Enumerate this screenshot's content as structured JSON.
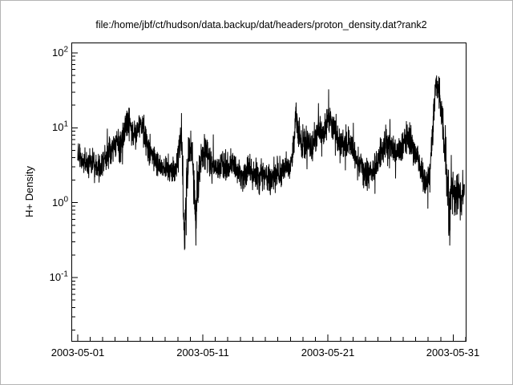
{
  "chart_data": {
    "type": "line",
    "title": "file:/home/jbf/ct/hudson/data.backup/dat/headers/proton_density.dat?rank2",
    "xlabel": "",
    "ylabel": "H+ Density",
    "y_scale": "log",
    "ylim": [
      0.0143,
      137.7
    ],
    "x_domain_days": [
      -0.5,
      31.0
    ],
    "x_start_date": "2003-05-01",
    "x_ticks": [
      {
        "day": 0,
        "label": "2003-05-01"
      },
      {
        "day": 10,
        "label": "2003-05-11"
      },
      {
        "day": 20,
        "label": "2003-05-21"
      },
      {
        "day": 30,
        "label": "2003-05-31"
      }
    ],
    "y_ticks": [
      {
        "value": 100,
        "base": "10",
        "exp": "2"
      },
      {
        "value": 10,
        "base": "10",
        "exp": "1"
      },
      {
        "value": 1,
        "base": "10",
        "exp": "0"
      },
      {
        "value": 0.1,
        "base": "10",
        "exp": "-1"
      }
    ],
    "line_color": "#000000",
    "frame_color": "#000000",
    "background_color": "#ffffff",
    "points_per_day": 80,
    "noise_seed": 1234,
    "series": [
      {
        "name": "H+ Density",
        "units": "",
        "control_points": [
          [
            0.0,
            4.5,
            0.09
          ],
          [
            0.3,
            3.6,
            0.08
          ],
          [
            0.7,
            3.2,
            0.08
          ],
          [
            1.1,
            3.8,
            0.09
          ],
          [
            1.5,
            3.3,
            0.08
          ],
          [
            1.9,
            2.9,
            0.08
          ],
          [
            2.2,
            3.8,
            0.09
          ],
          [
            2.6,
            5.0,
            0.1
          ],
          [
            3.0,
            5.5,
            0.1
          ],
          [
            3.4,
            6.0,
            0.1
          ],
          [
            3.8,
            9.0,
            0.1
          ],
          [
            4.0,
            13.0,
            0.1
          ],
          [
            4.2,
            11.0,
            0.1
          ],
          [
            4.5,
            7.0,
            0.1
          ],
          [
            4.8,
            9.5,
            0.1
          ],
          [
            5.1,
            11.0,
            0.1
          ],
          [
            5.4,
            8.0,
            0.1
          ],
          [
            5.7,
            5.0,
            0.1
          ],
          [
            6.0,
            4.0,
            0.09
          ],
          [
            6.5,
            3.2,
            0.08
          ],
          [
            7.0,
            2.8,
            0.08
          ],
          [
            7.5,
            2.5,
            0.08
          ],
          [
            7.9,
            3.0,
            0.09
          ],
          [
            8.15,
            6.0,
            0.1
          ],
          [
            8.3,
            9.0,
            0.1
          ],
          [
            8.45,
            0.8,
            0.2
          ],
          [
            8.55,
            0.35,
            0.2
          ],
          [
            8.7,
            2.0,
            0.15
          ],
          [
            8.9,
            4.5,
            0.12
          ],
          [
            9.1,
            5.5,
            0.1
          ],
          [
            9.3,
            2.0,
            0.15
          ],
          [
            9.45,
            0.5,
            0.2
          ],
          [
            9.6,
            1.5,
            0.15
          ],
          [
            9.8,
            3.5,
            0.12
          ],
          [
            10.0,
            4.5,
            0.1
          ],
          [
            10.3,
            5.0,
            0.1
          ],
          [
            10.6,
            3.5,
            0.1
          ],
          [
            11.0,
            2.8,
            0.09
          ],
          [
            11.5,
            3.2,
            0.09
          ],
          [
            12.0,
            2.7,
            0.09
          ],
          [
            12.4,
            3.3,
            0.09
          ],
          [
            12.8,
            2.6,
            0.09
          ],
          [
            13.2,
            2.2,
            0.1
          ],
          [
            13.6,
            2.8,
            0.09
          ],
          [
            14.0,
            2.4,
            0.09
          ],
          [
            14.5,
            2.0,
            0.1
          ],
          [
            15.0,
            2.3,
            0.09
          ],
          [
            15.4,
            1.9,
            0.1
          ],
          [
            15.8,
            2.4,
            0.09
          ],
          [
            16.2,
            2.6,
            0.09
          ],
          [
            16.6,
            2.8,
            0.09
          ],
          [
            17.0,
            3.2,
            0.09
          ],
          [
            17.25,
            6.0,
            0.1
          ],
          [
            17.45,
            16.0,
            0.1
          ],
          [
            17.6,
            9.0,
            0.1
          ],
          [
            17.9,
            6.5,
            0.1
          ],
          [
            18.3,
            7.5,
            0.1
          ],
          [
            18.7,
            6.0,
            0.1
          ],
          [
            19.0,
            7.0,
            0.1
          ],
          [
            19.3,
            9.0,
            0.1
          ],
          [
            19.6,
            8.0,
            0.1
          ],
          [
            19.9,
            12.0,
            0.11
          ],
          [
            20.2,
            14.0,
            0.11
          ],
          [
            20.5,
            9.0,
            0.1
          ],
          [
            20.8,
            7.0,
            0.1
          ],
          [
            21.2,
            5.5,
            0.1
          ],
          [
            21.6,
            6.5,
            0.1
          ],
          [
            22.0,
            5.0,
            0.1
          ],
          [
            22.4,
            3.5,
            0.09
          ],
          [
            22.8,
            2.8,
            0.09
          ],
          [
            23.2,
            2.4,
            0.09
          ],
          [
            23.6,
            3.0,
            0.09
          ],
          [
            24.0,
            3.5,
            0.09
          ],
          [
            24.4,
            5.0,
            0.1
          ],
          [
            24.7,
            6.5,
            0.1
          ],
          [
            25.0,
            5.5,
            0.1
          ],
          [
            25.4,
            4.5,
            0.1
          ],
          [
            25.8,
            5.0,
            0.1
          ],
          [
            26.1,
            6.5,
            0.1
          ],
          [
            26.4,
            8.0,
            0.11
          ],
          [
            26.7,
            6.0,
            0.1
          ],
          [
            27.0,
            4.5,
            0.1
          ],
          [
            27.4,
            3.0,
            0.1
          ],
          [
            27.8,
            1.6,
            0.12
          ],
          [
            28.1,
            2.5,
            0.12
          ],
          [
            28.35,
            8.0,
            0.12
          ],
          [
            28.55,
            35.0,
            0.11
          ],
          [
            28.75,
            40.0,
            0.1
          ],
          [
            28.95,
            22.0,
            0.12
          ],
          [
            29.1,
            15.0,
            0.12
          ],
          [
            29.3,
            6.0,
            0.15
          ],
          [
            29.5,
            2.5,
            0.15
          ],
          [
            29.65,
            0.55,
            0.2
          ],
          [
            29.8,
            1.3,
            0.15
          ],
          [
            30.0,
            1.8,
            0.13
          ],
          [
            30.2,
            1.1,
            0.15
          ],
          [
            30.4,
            1.6,
            0.13
          ],
          [
            30.6,
            1.2,
            0.14
          ],
          [
            30.9,
            1.4,
            0.12
          ]
        ]
      }
    ]
  }
}
